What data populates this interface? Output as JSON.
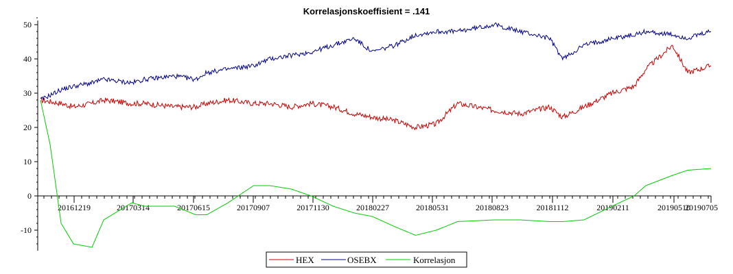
{
  "chart_data": {
    "type": "line",
    "title": "Korrelasjonskoeffisient =  .141",
    "xlabel": "",
    "ylabel": "",
    "ylim": [
      -15,
      52
    ],
    "y_ticks": [
      -10,
      0,
      10,
      20,
      30,
      40,
      50
    ],
    "x_tick_labels": [
      "20161219",
      "20170314",
      "20170615",
      "20170907",
      "20171130",
      "20180227",
      "20180531",
      "20180823",
      "20181112",
      "20190211",
      "20190510",
      "20190705"
    ],
    "grid": false,
    "legend_position": "bottom-center",
    "series": [
      {
        "name": "HEX",
        "color": "#cc0000",
        "x": [
          "20161101",
          "20161201",
          "20161219",
          "20170115",
          "20170201",
          "20170314",
          "20170401",
          "20170515",
          "20170615",
          "20170701",
          "20170801",
          "20170907",
          "20171001",
          "20171101",
          "20171130",
          "20180101",
          "20180201",
          "20180227",
          "20180401",
          "20180501",
          "20180531",
          "20180701",
          "20180823",
          "20181001",
          "20181112",
          "20181201",
          "20190101",
          "20190211",
          "20190315",
          "20190401",
          "20190510",
          "20190601",
          "20190705"
        ],
        "values": [
          28,
          27,
          26,
          27,
          28,
          27,
          27,
          26,
          26,
          27,
          28,
          27,
          27,
          26,
          27,
          26,
          24,
          23,
          22,
          20,
          21,
          27,
          25,
          24,
          26,
          23,
          26,
          30,
          32,
          37,
          44,
          36,
          38
        ]
      },
      {
        "name": "OSEBX",
        "color": "#00008b",
        "x": [
          "20161101",
          "20161201",
          "20161219",
          "20170115",
          "20170201",
          "20170314",
          "20170401",
          "20170515",
          "20170615",
          "20170701",
          "20170801",
          "20170907",
          "20171001",
          "20171101",
          "20171130",
          "20180101",
          "20180201",
          "20180227",
          "20180401",
          "20180501",
          "20180531",
          "20180701",
          "20180823",
          "20181001",
          "20181112",
          "20181201",
          "20190101",
          "20190211",
          "20190315",
          "20190401",
          "20190510",
          "20190601",
          "20190705"
        ],
        "values": [
          28,
          31,
          32,
          33,
          34,
          33,
          34,
          35,
          34,
          36,
          37,
          38,
          40,
          41,
          42,
          44,
          46,
          42,
          44,
          47,
          48,
          48,
          50,
          48,
          46,
          40,
          44,
          46,
          47,
          48,
          47,
          46,
          48
        ]
      },
      {
        "name": "Korrelasjon",
        "color": "#00cc00",
        "x": [
          "20161101",
          "20161115",
          "20161201",
          "20161219",
          "20170115",
          "20170201",
          "20170314",
          "20170401",
          "20170515",
          "20170615",
          "20170701",
          "20170801",
          "20170907",
          "20171001",
          "20171101",
          "20171130",
          "20180101",
          "20180201",
          "20180227",
          "20180401",
          "20180501",
          "20180531",
          "20180701",
          "20180823",
          "20181001",
          "20181112",
          "20181201",
          "20190101",
          "20190211",
          "20190315",
          "20190401",
          "20190510",
          "20190601",
          "20190705"
        ],
        "values": [
          28,
          15,
          -8,
          -14,
          -15,
          -7,
          -2,
          -3,
          -3,
          -5.5,
          -5.5,
          -2,
          3,
          3,
          2,
          0,
          -3,
          -5,
          -6,
          -9,
          -11.5,
          -10,
          -7.5,
          -7,
          -7,
          -7.5,
          -7.5,
          -7,
          -3,
          0,
          3,
          6,
          7.5,
          8
        ]
      }
    ]
  }
}
